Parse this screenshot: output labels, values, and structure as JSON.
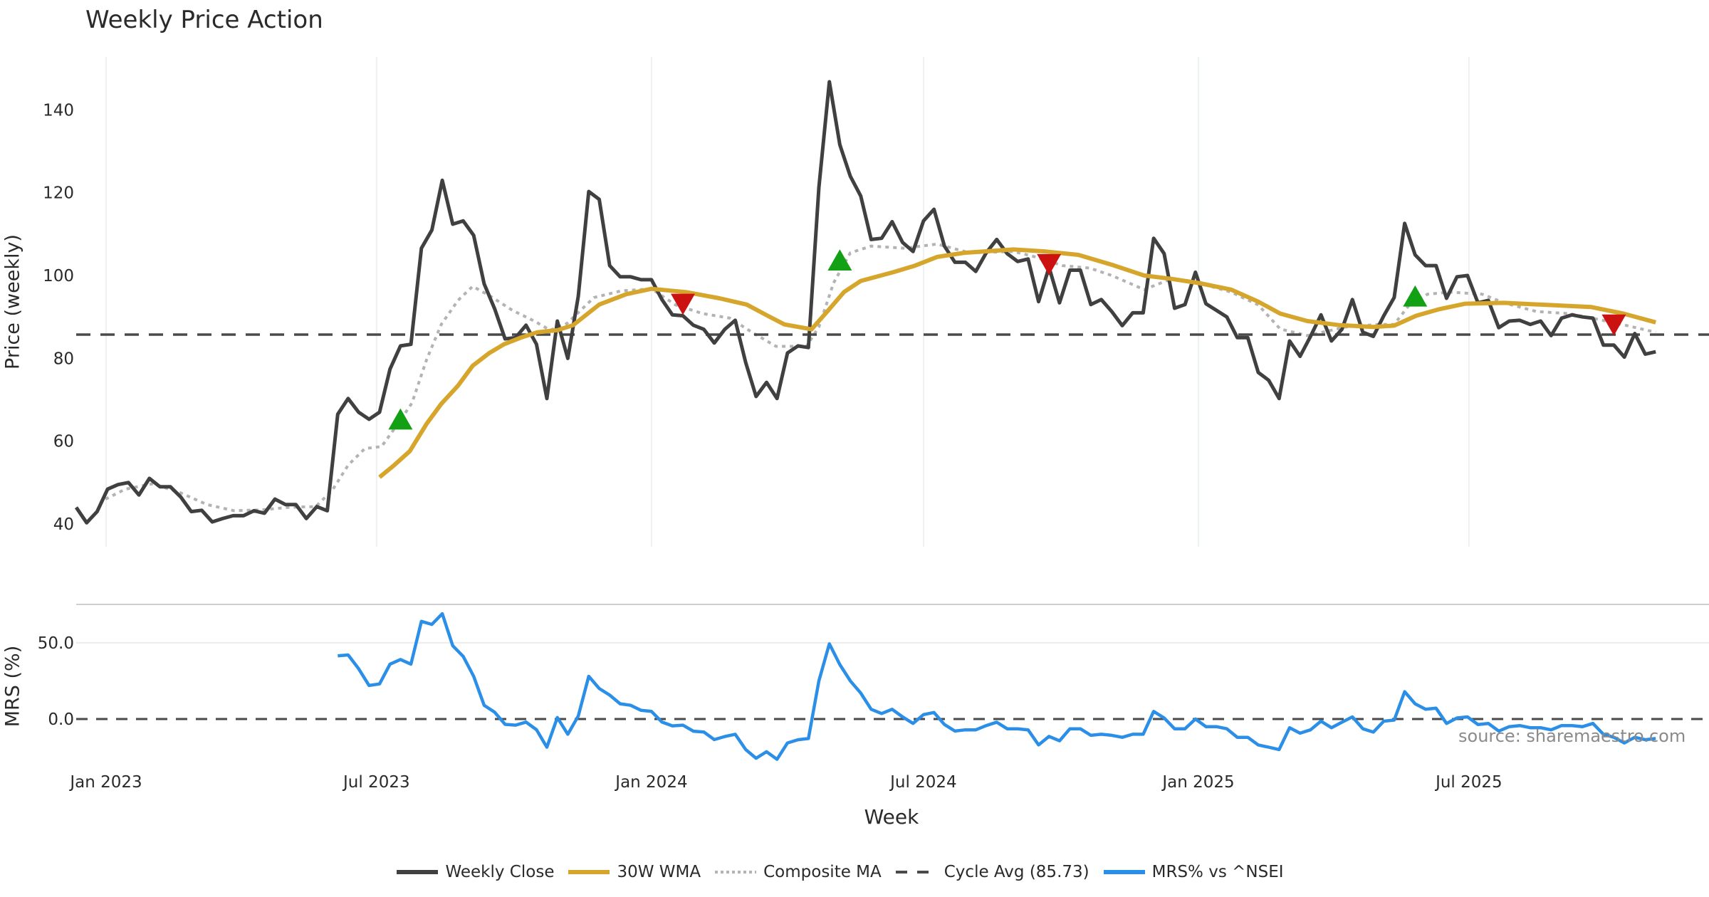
{
  "chart_data": {
    "type": "line",
    "title": "Weekly Price Action",
    "xlabel": "Week",
    "x_start": "2022-12-12",
    "x_unit": "week",
    "x_ticks": [
      {
        "label": "Jan 2023",
        "date": "2023-01-01"
      },
      {
        "label": "Jul 2023",
        "date": "2023-07-01"
      },
      {
        "label": "Jan 2024",
        "date": "2024-01-01"
      },
      {
        "label": "Jul 2024",
        "date": "2024-07-01"
      },
      {
        "label": "Jan 2025",
        "date": "2025-01-01"
      },
      {
        "label": "Jul 2025",
        "date": "2025-07-01"
      }
    ],
    "top_panel": {
      "ylabel": "Price (weekly)",
      "ylim": [
        35,
        153
      ],
      "y_ticks": [
        "40",
        "60",
        "80",
        "100",
        "120",
        "140"
      ],
      "y_tick_values": [
        40,
        60,
        80,
        100,
        120,
        140
      ],
      "series": [
        {
          "name": "Weekly Close",
          "color": "#404040",
          "start_week": 0,
          "values": [
            44,
            40.3,
            43,
            48.4,
            49.5,
            50,
            47,
            51,
            49,
            49,
            46.5,
            43,
            43.3,
            40.5,
            41.3,
            42,
            42,
            43.2,
            42.6,
            46,
            44.7,
            44.7,
            41.3,
            44.2,
            43.2,
            66.5,
            70.3,
            67,
            65.3,
            67,
            77.4,
            83,
            83.4,
            106.6,
            111,
            123,
            112.4,
            113.2,
            109.7,
            98,
            92,
            84.7,
            85,
            88,
            83.4,
            70.3,
            89,
            80,
            95,
            120.3,
            118.4,
            102.4,
            99.7,
            99.7,
            99,
            99,
            94.2,
            90.5,
            90.3,
            88,
            87,
            83.7,
            87,
            89.2,
            79,
            70.8,
            74.2,
            70.3,
            81.3,
            83,
            82.6,
            121.3,
            146.8,
            131.6,
            124,
            119.2,
            108.7,
            109,
            113,
            108,
            105.8,
            113.2,
            116,
            107.1,
            103.2,
            103.2,
            101,
            105.5,
            108.7,
            105.3,
            103.4,
            104,
            93.7,
            102,
            93.4,
            101.3,
            101.3,
            93,
            94.2,
            91.3,
            87.9,
            91,
            91,
            109,
            105.3,
            92.1,
            93,
            100.8,
            93.2,
            91.6,
            90,
            85,
            85,
            76.6,
            74.7,
            70.3,
            84.2,
            80.5,
            85.3,
            90.5,
            84.2,
            87,
            94.2,
            86.3,
            85.3,
            90.3,
            94.7,
            112.6,
            105,
            102.4,
            102.4,
            94.5,
            99.7,
            100,
            93.4,
            94,
            87.4,
            89,
            89.2,
            88.2,
            89,
            85.5,
            89.7,
            90.5,
            90,
            89.7,
            83.2,
            83.2,
            80.3,
            86,
            81,
            81.6
          ]
        },
        {
          "name": "30W WMA",
          "color": "#d6a62c",
          "points": [
            [
              29,
              51.3
            ],
            [
              30.4,
              54.2
            ],
            [
              31.9,
              57.6
            ],
            [
              33.5,
              64.2
            ],
            [
              34.9,
              69
            ],
            [
              36.5,
              73.4
            ],
            [
              37.9,
              78.2
            ],
            [
              39.5,
              81.3
            ],
            [
              40.9,
              83.4
            ],
            [
              42.5,
              85
            ],
            [
              44.1,
              86.3
            ],
            [
              46,
              86.8
            ],
            [
              47.5,
              88
            ],
            [
              50,
              93
            ],
            [
              52.6,
              95.5
            ],
            [
              55,
              96.8
            ],
            [
              58.3,
              96
            ],
            [
              61.5,
              94.5
            ],
            [
              64.1,
              93
            ],
            [
              66.1,
              90.3
            ],
            [
              67.7,
              88.2
            ],
            [
              70.3,
              87
            ],
            [
              71.9,
              91.6
            ],
            [
              73.4,
              96
            ],
            [
              75,
              98.7
            ],
            [
              78.1,
              100.8
            ],
            [
              80.2,
              102.4
            ],
            [
              82.3,
              104.5
            ],
            [
              84.9,
              105.5
            ],
            [
              89.6,
              106.3
            ],
            [
              92.7,
              105.8
            ],
            [
              95.8,
              105
            ],
            [
              99,
              102.6
            ],
            [
              102.1,
              100
            ],
            [
              104.7,
              99.2
            ],
            [
              107.3,
              98.2
            ],
            [
              110.4,
              96.6
            ],
            [
              113,
              93.7
            ],
            [
              115.1,
              90.8
            ],
            [
              117.7,
              89
            ],
            [
              120.8,
              88
            ],
            [
              124,
              87.6
            ],
            [
              126,
              87.9
            ],
            [
              128.1,
              90.3
            ],
            [
              130.2,
              91.8
            ],
            [
              132.8,
              93.2
            ],
            [
              136.5,
              93.4
            ],
            [
              140.6,
              92.9
            ],
            [
              144.8,
              92.4
            ],
            [
              147.9,
              90.8
            ],
            [
              151,
              88.7
            ]
          ]
        },
        {
          "name": "Composite MA",
          "color": "#b3b3b3",
          "points": [
            [
              2.8,
              46
            ],
            [
              4.7,
              48.4
            ],
            [
              7.3,
              49.7
            ],
            [
              9.9,
              47.6
            ],
            [
              12.5,
              44.7
            ],
            [
              15.1,
              43.2
            ],
            [
              17.7,
              43.4
            ],
            [
              20.3,
              44
            ],
            [
              22.9,
              44.2
            ],
            [
              24.5,
              48.2
            ],
            [
              26,
              54.2
            ],
            [
              27.6,
              58.2
            ],
            [
              29.2,
              58.7
            ],
            [
              30.7,
              64
            ],
            [
              32.1,
              69.2
            ],
            [
              33.5,
              79.7
            ],
            [
              34.9,
              88.2
            ],
            [
              36.5,
              94
            ],
            [
              37.9,
              97.4
            ],
            [
              39.6,
              95
            ],
            [
              41.7,
              91.6
            ],
            [
              43.8,
              89
            ],
            [
              45.3,
              86.8
            ],
            [
              46.9,
              88.4
            ],
            [
              49.5,
              94.7
            ],
            [
              52.1,
              96.3
            ],
            [
              55,
              96.8
            ],
            [
              57.3,
              92.9
            ],
            [
              59.9,
              90.8
            ],
            [
              62.5,
              89.7
            ],
            [
              64.6,
              86.3
            ],
            [
              66.9,
              82.9
            ],
            [
              69.8,
              82.9
            ],
            [
              71,
              87.6
            ],
            [
              72.4,
              98.2
            ],
            [
              74,
              105.5
            ],
            [
              76,
              107.1
            ],
            [
              79.2,
              106.6
            ],
            [
              82.3,
              107.6
            ],
            [
              85.4,
              105.5
            ],
            [
              89.6,
              105.8
            ],
            [
              91.7,
              104.5
            ],
            [
              94.3,
              102.4
            ],
            [
              96.9,
              101.8
            ],
            [
              99,
              100
            ],
            [
              102.1,
              96.6
            ],
            [
              104.7,
              99.2
            ],
            [
              107.3,
              98.2
            ],
            [
              110.4,
              96
            ],
            [
              113,
              92.9
            ],
            [
              115.1,
              87.1
            ],
            [
              117.7,
              85.5
            ],
            [
              121.4,
              87.6
            ],
            [
              124.5,
              88.2
            ],
            [
              126,
              88.2
            ],
            [
              127.6,
              93.4
            ],
            [
              129.2,
              95.5
            ],
            [
              131.3,
              96
            ],
            [
              134.4,
              95.5
            ],
            [
              136.5,
              93.4
            ],
            [
              139.6,
              91.3
            ],
            [
              142.7,
              90.8
            ],
            [
              146.9,
              88.7
            ],
            [
              151,
              86.3
            ]
          ]
        }
      ],
      "cycle_avg": {
        "name": "Cycle Avg (85.73)",
        "value": 85.73,
        "color": "#4a4a4a"
      },
      "signals": [
        {
          "type": "buy",
          "week": 31,
          "price": 65,
          "color": "#14a014"
        },
        {
          "type": "sell",
          "week": 58,
          "price": 93.4,
          "color": "#cc1111"
        },
        {
          "type": "buy",
          "week": 73,
          "price": 103.4,
          "color": "#14a014"
        },
        {
          "type": "sell",
          "week": 93,
          "price": 103,
          "color": "#cc1111"
        },
        {
          "type": "buy",
          "week": 128,
          "price": 94.7,
          "color": "#14a014"
        },
        {
          "type": "sell",
          "week": 147,
          "price": 88.4,
          "color": "#cc1111"
        }
      ]
    },
    "bottom_panel": {
      "ylabel": "MRS (%)",
      "y_ticks": [
        "0.0",
        "50.0"
      ],
      "y_tick_values": [
        0,
        50
      ],
      "series": {
        "name": "MRS% vs ^NSEI",
        "color": "#2b8fe8",
        "start_week": 25,
        "values": [
          41.4,
          42,
          33,
          22,
          23,
          36,
          39,
          36,
          64,
          62,
          69,
          48,
          41,
          28,
          9,
          4.5,
          -3.5,
          -4,
          -2,
          -7,
          -18.5,
          1,
          -10,
          2,
          28,
          20,
          15.7,
          10,
          9,
          5.7,
          5,
          -2,
          -4.5,
          -4,
          -8,
          -8.5,
          -13.5,
          -11.5,
          -10,
          -20,
          -25.7,
          -21.4,
          -26.4,
          -15.7,
          -13.6,
          -12.8,
          25,
          49.3,
          35.7,
          25,
          17,
          6.4,
          3.6,
          6.4,
          1.4,
          -2.9,
          2.9,
          4.3,
          -3.6,
          -7.9,
          -7.1,
          -7.1,
          -4.3,
          -2.1,
          -6.4,
          -6.4,
          -7.1,
          -17,
          -11.4,
          -14.3,
          -6.4,
          -6.4,
          -10.7,
          -10,
          -10.7,
          -12,
          -10,
          -10,
          5,
          0.7,
          -6.4,
          -6.4,
          0,
          -5,
          -5,
          -6.4,
          -12,
          -12,
          -17,
          -18.5,
          -20,
          -5.7,
          -9.3,
          -7.1,
          -1.4,
          -5.7,
          -2.1,
          1.4,
          -6.4,
          -8.6,
          -1.4,
          -0.7,
          17.9,
          10,
          6.4,
          7.1,
          -2.9,
          0.7,
          1.4,
          -3.6,
          -2.9,
          -7.9,
          -5,
          -4.3,
          -5.7,
          -5.7,
          -7.1,
          -4.3,
          -4.3,
          -5,
          -2.9,
          -10,
          -12,
          -15.7,
          -12,
          -13.6,
          -12.8
        ]
      }
    },
    "legend": [
      "Weekly Close",
      "30W WMA",
      "Composite MA",
      "Cycle Avg (85.73)",
      "MRS% vs ^NSEI"
    ],
    "legend_position": "bottom-center",
    "source": "source: sharemaestro.com"
  }
}
